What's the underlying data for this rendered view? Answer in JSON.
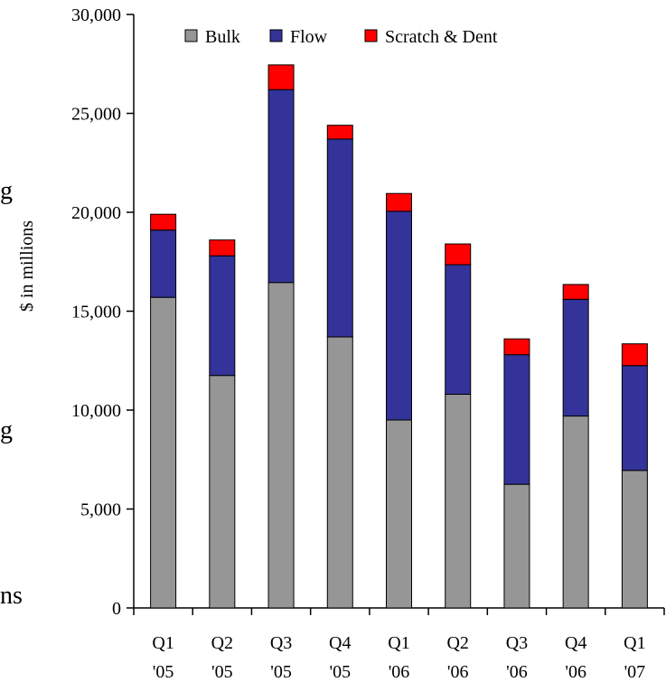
{
  "chart_data": {
    "type": "bar",
    "stacked": true,
    "categories": [
      [
        "Q1",
        "'05"
      ],
      [
        "Q2",
        "'05"
      ],
      [
        "Q3",
        "'05"
      ],
      [
        "Q4",
        "'05"
      ],
      [
        "Q1",
        "'06"
      ],
      [
        "Q2",
        "'06"
      ],
      [
        "Q3",
        "'06"
      ],
      [
        "Q4",
        "'06"
      ],
      [
        "Q1",
        "'07"
      ]
    ],
    "series": [
      {
        "name": "Bulk",
        "color": "#969696",
        "values": [
          15700,
          11750,
          16450,
          13700,
          9500,
          10800,
          6250,
          9700,
          6950
        ]
      },
      {
        "name": "Flow",
        "color": "#333399",
        "values": [
          3400,
          6050,
          9750,
          10000,
          10550,
          6550,
          6550,
          5900,
          5300
        ]
      },
      {
        "name": "Scratch & Dent",
        "color": "#ff0000",
        "values": [
          800,
          800,
          1250,
          700,
          900,
          1050,
          800,
          750,
          1100
        ]
      }
    ],
    "title": "",
    "xlabel": "",
    "ylabel": "$ in millions",
    "ylim": [
      0,
      30000
    ],
    "yticks": [
      0,
      5000,
      10000,
      15000,
      20000,
      25000,
      30000
    ],
    "ytick_labels": [
      "0",
      "5,000",
      "10,000",
      "15,000",
      "20,000",
      "25,000",
      "30,000"
    ],
    "grid": false,
    "legend_position": "top"
  },
  "edge_fragments": [
    "g",
    "g",
    "ns"
  ]
}
